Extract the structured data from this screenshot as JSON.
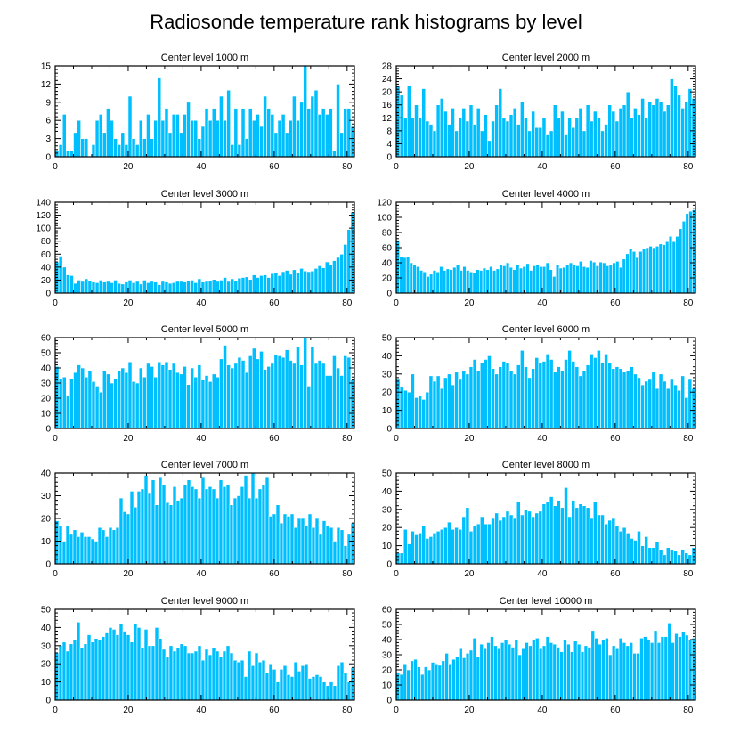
{
  "figure_title": "Radiosonde temperature rank histograms by level",
  "colors": {
    "bar": "#00bfff",
    "axis": "#000000",
    "background": "#ffffff"
  },
  "chart_data": [
    {
      "type": "bar",
      "title": "Center level 1000 m",
      "xlim": [
        0,
        82
      ],
      "ylim": [
        0,
        15
      ],
      "yticks": [
        0,
        3,
        6,
        9,
        12,
        15
      ],
      "xticks": [
        0,
        20,
        40,
        60,
        80
      ],
      "x_start": 0,
      "values": [
        1,
        2,
        7,
        1,
        1,
        4,
        6,
        3,
        3,
        0,
        2,
        6,
        7,
        4,
        8,
        6,
        3,
        2,
        4,
        2,
        10,
        3,
        2,
        6,
        3,
        7,
        3,
        6,
        13,
        6,
        8,
        4,
        7,
        7,
        4,
        7,
        9,
        6,
        6,
        3,
        5,
        8,
        6,
        8,
        6,
        10,
        6,
        11,
        2,
        8,
        2,
        8,
        3,
        8,
        6,
        7,
        5,
        10,
        8,
        7,
        4,
        6,
        7,
        4,
        6,
        10,
        6,
        9,
        15,
        8,
        10,
        11,
        7,
        8,
        7,
        8,
        1,
        12,
        4,
        8,
        8,
        5
      ]
    },
    {
      "type": "bar",
      "title": "Center level 2000 m",
      "xlim": [
        0,
        82
      ],
      "ylim": [
        0,
        28
      ],
      "yticks": [
        0,
        4,
        8,
        12,
        16,
        20,
        24,
        28
      ],
      "xticks": [
        0,
        20,
        40,
        60,
        80
      ],
      "x_start": 0,
      "values": [
        22,
        19,
        12,
        22,
        12,
        16,
        12,
        21,
        11,
        10,
        8,
        16,
        18,
        14,
        10,
        15,
        8,
        12,
        15,
        11,
        16,
        10,
        15,
        8,
        13,
        5,
        11,
        16,
        21,
        12,
        11,
        13,
        15,
        10,
        17,
        12,
        8,
        14,
        9,
        9,
        12,
        7,
        8,
        16,
        12,
        14,
        7,
        12,
        9,
        12,
        15,
        8,
        16,
        11,
        14,
        12,
        8,
        10,
        16,
        14,
        11,
        15,
        16,
        20,
        12,
        15,
        13,
        18,
        12,
        17,
        16,
        18,
        17,
        14,
        16,
        24,
        22,
        19,
        15,
        17,
        21,
        18
      ]
    },
    {
      "type": "bar",
      "title": "Center level 3000 m",
      "xlim": [
        0,
        82
      ],
      "ylim": [
        0,
        140
      ],
      "yticks": [
        0,
        20,
        40,
        60,
        80,
        100,
        120,
        140
      ],
      "xticks": [
        0,
        20,
        40,
        60,
        80
      ],
      "x_start": 0,
      "values": [
        48,
        57,
        40,
        28,
        27,
        15,
        20,
        18,
        22,
        19,
        17,
        16,
        20,
        17,
        18,
        16,
        20,
        15,
        14,
        17,
        20,
        16,
        18,
        14,
        20,
        16,
        18,
        17,
        13,
        18,
        17,
        15,
        16,
        18,
        18,
        17,
        19,
        20,
        16,
        22,
        17,
        18,
        19,
        21,
        18,
        20,
        24,
        18,
        22,
        19,
        23,
        24,
        25,
        21,
        28,
        24,
        27,
        28,
        24,
        30,
        32,
        27,
        33,
        35,
        29,
        36,
        31,
        38,
        34,
        33,
        34,
        38,
        42,
        39,
        48,
        44,
        50,
        55,
        60,
        75,
        98,
        125
      ]
    },
    {
      "type": "bar",
      "title": "Center level 4000 m",
      "xlim": [
        0,
        82
      ],
      "ylim": [
        0,
        120
      ],
      "yticks": [
        0,
        20,
        40,
        60,
        80,
        100,
        120
      ],
      "xticks": [
        0,
        20,
        40,
        60,
        80
      ],
      "x_start": 0,
      "values": [
        70,
        48,
        47,
        48,
        40,
        38,
        35,
        30,
        28,
        22,
        25,
        30,
        28,
        35,
        30,
        32,
        31,
        34,
        37,
        30,
        35,
        30,
        28,
        27,
        31,
        30,
        33,
        31,
        35,
        30,
        32,
        37,
        36,
        40,
        34,
        31,
        37,
        33,
        35,
        39,
        30,
        36,
        38,
        35,
        35,
        40,
        31,
        22,
        37,
        33,
        34,
        37,
        40,
        38,
        36,
        42,
        35,
        34,
        43,
        41,
        36,
        41,
        40,
        36,
        38,
        40,
        42,
        34,
        45,
        52,
        58,
        55,
        47,
        55,
        58,
        60,
        62,
        60,
        62,
        65,
        64,
        68,
        75,
        68,
        75,
        85,
        95,
        105,
        108,
        110
      ]
    },
    {
      "type": "bar",
      "title": "Center level 5000 m",
      "xlim": [
        0,
        82
      ],
      "ylim": [
        0,
        60
      ],
      "yticks": [
        0,
        10,
        20,
        30,
        40,
        50,
        60
      ],
      "xticks": [
        0,
        20,
        40,
        60,
        80
      ],
      "x_start": 0,
      "values": [
        41,
        33,
        34,
        22,
        33,
        37,
        42,
        40,
        34,
        38,
        31,
        28,
        24,
        38,
        36,
        30,
        33,
        38,
        40,
        37,
        44,
        31,
        30,
        40,
        34,
        43,
        41,
        34,
        44,
        42,
        44,
        39,
        43,
        37,
        36,
        41,
        29,
        40,
        34,
        42,
        32,
        35,
        31,
        36,
        34,
        46,
        55,
        42,
        40,
        43,
        47,
        45,
        37,
        48,
        53,
        46,
        51,
        39,
        41,
        43,
        49,
        48,
        47,
        52,
        45,
        43,
        54,
        42,
        60,
        28,
        54,
        43,
        45,
        43,
        35,
        35,
        48,
        40,
        35,
        48,
        47,
        32
      ]
    },
    {
      "type": "bar",
      "title": "Center level 6000 m",
      "xlim": [
        0,
        82
      ],
      "ylim": [
        0,
        50
      ],
      "yticks": [
        0,
        10,
        20,
        30,
        40,
        50
      ],
      "xticks": [
        0,
        20,
        40,
        60,
        80
      ],
      "x_start": 0,
      "values": [
        27,
        23,
        21,
        20,
        30,
        17,
        18,
        16,
        20,
        29,
        26,
        29,
        22,
        28,
        30,
        24,
        31,
        27,
        32,
        30,
        34,
        38,
        32,
        36,
        38,
        40,
        33,
        30,
        34,
        37,
        36,
        32,
        30,
        35,
        43,
        34,
        28,
        33,
        39,
        36,
        37,
        41,
        38,
        31,
        34,
        32,
        38,
        43,
        37,
        34,
        29,
        32,
        35,
        41,
        39,
        43,
        36,
        41,
        36,
        33,
        34,
        33,
        31,
        32,
        34,
        30,
        28,
        24,
        26,
        27,
        31,
        22,
        30,
        26,
        22,
        27,
        24,
        21,
        29,
        17,
        27,
        22
      ]
    },
    {
      "type": "bar",
      "title": "Center level 7000 m",
      "xlim": [
        0,
        82
      ],
      "ylim": [
        0,
        40
      ],
      "yticks": [
        0,
        10,
        20,
        30,
        40
      ],
      "xticks": [
        0,
        20,
        40,
        60,
        80
      ],
      "x_start": 0,
      "values": [
        19,
        17,
        10,
        17,
        13,
        15,
        12,
        14,
        12,
        12,
        11,
        10,
        16,
        15,
        12,
        16,
        15,
        16,
        29,
        23,
        22,
        32,
        25,
        32,
        33,
        39,
        31,
        37,
        26,
        38,
        35,
        27,
        26,
        34,
        28,
        29,
        35,
        37,
        34,
        33,
        29,
        38,
        33,
        34,
        33,
        29,
        37,
        34,
        35,
        26,
        29,
        30,
        34,
        39,
        29,
        40,
        29,
        33,
        35,
        38,
        21,
        22,
        26,
        18,
        22,
        21,
        22,
        16,
        20,
        20,
        17,
        22,
        16,
        20,
        13,
        19,
        17,
        16,
        10,
        16,
        15,
        8,
        13,
        18
      ]
    },
    {
      "type": "bar",
      "title": "Center level 8000 m",
      "xlim": [
        0,
        82
      ],
      "ylim": [
        0,
        50
      ],
      "yticks": [
        0,
        10,
        20,
        30,
        40,
        50
      ],
      "xticks": [
        0,
        20,
        40,
        60,
        80
      ],
      "x_start": 0,
      "values": [
        6,
        6,
        19,
        11,
        18,
        16,
        17,
        21,
        14,
        15,
        17,
        18,
        19,
        20,
        23,
        19,
        20,
        19,
        26,
        31,
        18,
        21,
        22,
        26,
        22,
        22,
        25,
        28,
        24,
        26,
        29,
        27,
        25,
        34,
        27,
        30,
        29,
        26,
        28,
        29,
        33,
        34,
        37,
        32,
        35,
        31,
        42,
        26,
        35,
        31,
        33,
        32,
        31,
        25,
        34,
        27,
        27,
        22,
        24,
        25,
        21,
        18,
        20,
        17,
        14,
        13,
        18,
        10,
        15,
        9,
        9,
        12,
        8,
        5,
        9,
        8,
        7,
        5,
        8,
        6,
        5,
        9
      ]
    },
    {
      "type": "bar",
      "title": "Center level 9000 m",
      "xlim": [
        0,
        82
      ],
      "ylim": [
        0,
        50
      ],
      "yticks": [
        0,
        10,
        20,
        30,
        40,
        50
      ],
      "xticks": [
        0,
        20,
        40,
        60,
        80
      ],
      "x_start": 0,
      "values": [
        26,
        30,
        32,
        27,
        31,
        33,
        43,
        29,
        31,
        36,
        32,
        34,
        33,
        35,
        37,
        40,
        39,
        36,
        42,
        38,
        36,
        32,
        42,
        40,
        29,
        39,
        30,
        30,
        40,
        34,
        28,
        24,
        30,
        27,
        29,
        31,
        30,
        26,
        26,
        27,
        30,
        22,
        28,
        25,
        29,
        27,
        24,
        27,
        30,
        26,
        22,
        21,
        22,
        13,
        27,
        19,
        26,
        21,
        22,
        15,
        20,
        17,
        10,
        17,
        19,
        14,
        13,
        21,
        16,
        19,
        20,
        12,
        13,
        14,
        13,
        10,
        8,
        10,
        8,
        19,
        21,
        15,
        10,
        18
      ]
    },
    {
      "type": "bar",
      "title": "Center level 10000 m",
      "xlim": [
        0,
        82
      ],
      "ylim": [
        0,
        60
      ],
      "yticks": [
        0,
        10,
        20,
        30,
        40,
        50,
        60
      ],
      "xticks": [
        0,
        20,
        40,
        60,
        80
      ],
      "x_start": 0,
      "values": [
        18,
        17,
        24,
        20,
        26,
        27,
        22,
        17,
        22,
        20,
        25,
        24,
        23,
        26,
        31,
        24,
        27,
        29,
        34,
        28,
        31,
        33,
        41,
        29,
        37,
        34,
        38,
        42,
        36,
        34,
        38,
        40,
        37,
        35,
        40,
        30,
        34,
        38,
        36,
        40,
        41,
        34,
        36,
        42,
        38,
        37,
        35,
        32,
        40,
        37,
        32,
        39,
        37,
        32,
        36,
        35,
        46,
        41,
        37,
        40,
        41,
        30,
        36,
        34,
        41,
        38,
        36,
        38,
        31,
        31,
        41,
        42,
        40,
        38,
        46,
        38,
        42,
        42,
        51,
        38,
        44,
        42,
        45,
        43,
        40,
        41
      ]
    }
  ]
}
